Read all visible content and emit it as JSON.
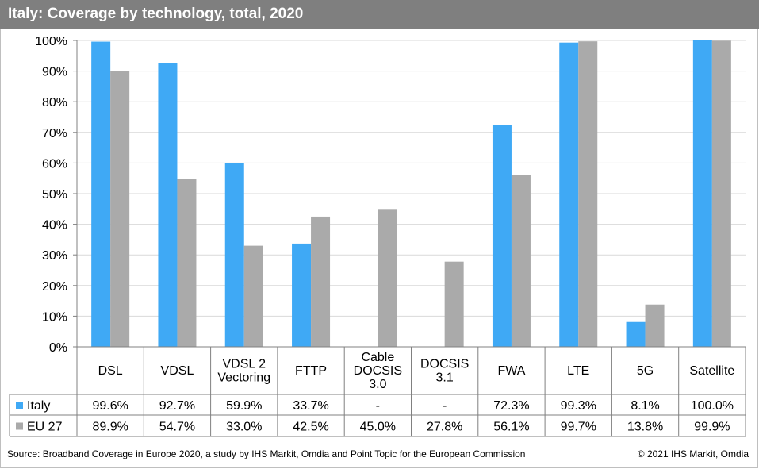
{
  "title": "Italy: Coverage by technology, total, 2020",
  "chart_data": {
    "type": "bar",
    "title": "Italy: Coverage by technology, total, 2020",
    "categories": [
      [
        "DSL"
      ],
      [
        "VDSL"
      ],
      [
        "VDSL 2",
        "Vectoring"
      ],
      [
        "FTTP"
      ],
      [
        "Cable",
        "DOCSIS",
        "3.0"
      ],
      [
        "DOCSIS",
        "3.1"
      ],
      [
        "FWA"
      ],
      [
        "LTE"
      ],
      [
        "5G"
      ],
      [
        "Satellite"
      ]
    ],
    "series": [
      {
        "name": "Italy",
        "color": "#3fa9f5",
        "values": [
          99.6,
          92.7,
          59.9,
          33.7,
          null,
          null,
          72.3,
          99.3,
          8.1,
          100.0
        ],
        "labels": [
          "99.6%",
          "92.7%",
          "59.9%",
          "33.7%",
          "-",
          "-",
          "72.3%",
          "99.3%",
          "8.1%",
          "100.0%"
        ]
      },
      {
        "name": "EU 27",
        "color": "#aaaaaa",
        "values": [
          89.9,
          54.7,
          33.0,
          42.5,
          45.0,
          27.8,
          56.1,
          99.7,
          13.8,
          99.9
        ],
        "labels": [
          "89.9%",
          "54.7%",
          "33.0%",
          "42.5%",
          "45.0%",
          "27.8%",
          "56.1%",
          "99.7%",
          "13.8%",
          "99.9%"
        ]
      }
    ],
    "yticks": [
      "0%",
      "10%",
      "20%",
      "30%",
      "40%",
      "50%",
      "60%",
      "70%",
      "80%",
      "90%",
      "100%"
    ],
    "ylim": [
      0,
      100
    ],
    "grid": true,
    "legend": "data-table"
  },
  "footer": {
    "source": "Source: Broadband Coverage in Europe 2020, a study by IHS Markit, Omdia and Point Topic for the European Commission",
    "copyright": "© 2021 IHS Markit, Omdia"
  }
}
